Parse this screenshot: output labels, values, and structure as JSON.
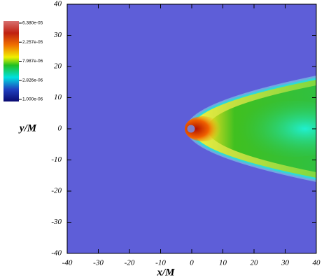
{
  "chart_data": {
    "type": "heatmap",
    "xlabel": "x/M",
    "ylabel": "y/M",
    "xlim": [
      -40,
      40
    ],
    "xticks": [
      -40,
      -30,
      -20,
      -10,
      0,
      10,
      20,
      30,
      40
    ],
    "ylim": [
      -40,
      40
    ],
    "yticks": [
      -40,
      -30,
      -20,
      -10,
      0,
      10,
      20,
      30,
      40
    ],
    "colorbar": {
      "log": true,
      "clim": [
        1e-06,
        6.38e-05
      ],
      "ticks": [
        {
          "value": 6.38e-05,
          "label": "6.380e-05"
        },
        {
          "value": 2.257e-05,
          "label": "2.257e-05"
        },
        {
          "value": 7.987e-06,
          "label": "7.987e-06"
        },
        {
          "value": 2.826e-06,
          "label": "2.826e-06"
        },
        {
          "value": 1e-06,
          "label": "1.000e-06"
        }
      ]
    }
  }
}
